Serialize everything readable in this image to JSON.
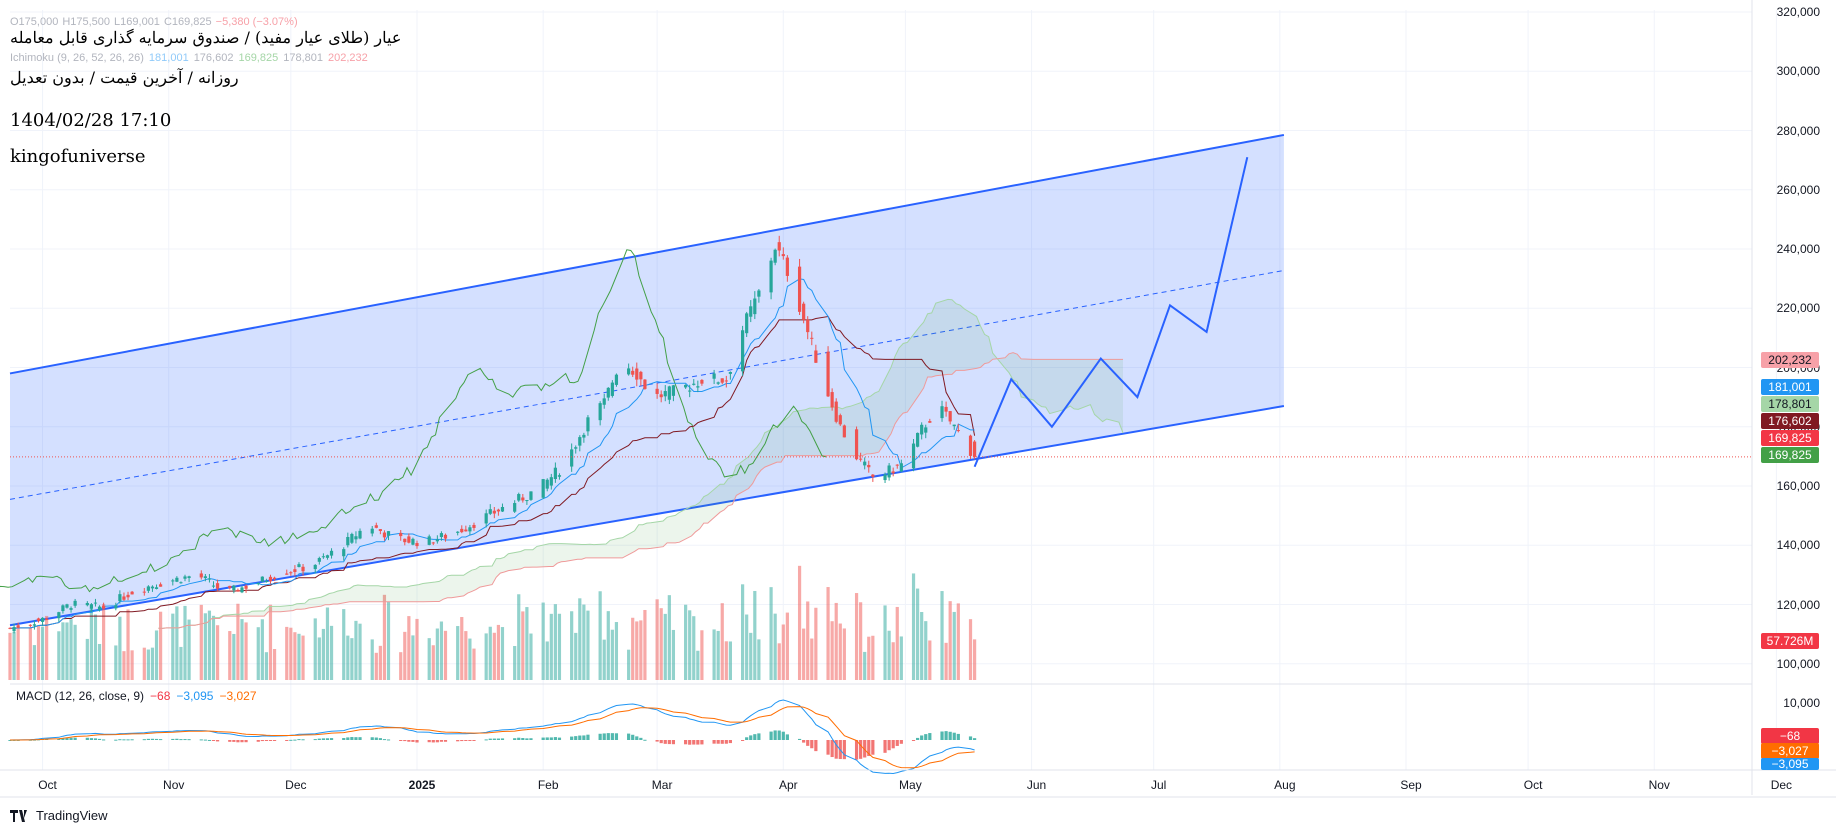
{
  "header": {
    "symbol_line": "عیار (طلای عیار مفید) / صندوق سرمایه گذاری قابل معامله",
    "sub_line": "روزانه / آخرین قیمت / بدون تعدیل",
    "datetime": "1404/02/28 17:10",
    "author": "kingofuniverse",
    "ohlc": {
      "o": "O175,000",
      "h": "H175,500",
      "l": "L169,001",
      "c": "C169,825",
      "chg": "−5,380 (−3.07%)"
    },
    "ichimoku": {
      "label": "Ichimoku (9, 26, 52, 26, 26)",
      "v1": "181,001",
      "v2": "176,602",
      "v3": "169,825",
      "v4": "178,801",
      "v5": "202,232"
    }
  },
  "price_axis": [
    "320,000",
    "300,000",
    "280,000",
    "260,000",
    "240,000",
    "220,000",
    "200,000",
    "180,000",
    "160,000",
    "140,000",
    "120,000",
    "100,000"
  ],
  "macd_axis": [
    "10,000"
  ],
  "time_axis": [
    "Oct",
    "Nov",
    "Dec",
    "2025",
    "Feb",
    "Mar",
    "Apr",
    "May",
    "Jun",
    "Jul",
    "Aug",
    "Sep",
    "Oct",
    "Nov",
    "Dec"
  ],
  "badges": {
    "senkou_b": "202,232",
    "tenkan": "181,001",
    "senkou_a": "178,801",
    "kijun": "176,602",
    "last_red": "169,825",
    "last_green": "169,825",
    "volume": "57.726M",
    "macd_hist": "−68",
    "macd_signal": "−3,027",
    "macd_line": "−3,095"
  },
  "macd_legend": {
    "label": "MACD (12, 26, close, 9)",
    "hist": "−68",
    "macd": "−3,095",
    "signal": "−3,027"
  },
  "footer": {
    "brand": "TradingView"
  },
  "colors": {
    "up": "#26a69a",
    "down": "#ef5350",
    "channel": "#2962ff",
    "tenkan": "#2196f3",
    "kijun": "#801922",
    "chikou": "#43a047",
    "macd": "#2196f3",
    "signal": "#ff6d00",
    "badge_blue": "#2196f3",
    "badge_green": "#43a047",
    "badge_red": "#f23645",
    "badge_maroon": "#801922",
    "badge_pink": "#f7a1a8",
    "badge_lightgreen": "#a5d6a7"
  },
  "chart_data": {
    "type": "candlestick",
    "symbol": "عیار (طلای عیار مفید) / صندوق سرمایه گذاری قابل معامله",
    "timeframe": "روزانه",
    "last": {
      "open": 175000,
      "high": 175500,
      "low": 169001,
      "close": 169825,
      "change": -5380,
      "change_pct": -3.07,
      "volume": "57.726M"
    },
    "ylim": [
      95000,
      322000
    ],
    "indicators": {
      "ichimoku": {
        "tenkan": 181001,
        "kijun": 176602,
        "senkou_a": 178801,
        "senkou_b": 202232,
        "chikou": 169825
      },
      "macd": {
        "params": "12, 26, close, 9",
        "histogram": -68,
        "macd": -3095,
        "signal": -3027
      }
    },
    "channel": {
      "upper_start": {
        "date": "2024-09-23",
        "price": 198000
      },
      "upper_end": {
        "date": "2025-08-02",
        "price": 278500
      },
      "lower_start": {
        "date": "2024-09-23",
        "price": 113000
      },
      "lower_end": {
        "date": "2025-08-02",
        "price": 187000
      }
    },
    "projection": [
      {
        "date": "2025-05-18",
        "price": 166500
      },
      {
        "date": "2025-05-27",
        "price": 196000
      },
      {
        "date": "2025-06-06",
        "price": 180000
      },
      {
        "date": "2025-06-18",
        "price": 203000
      },
      {
        "date": "2025-06-27",
        "price": 190000
      },
      {
        "date": "2025-07-05",
        "price": 221000
      },
      {
        "date": "2025-07-14",
        "price": 212000
      },
      {
        "date": "2025-07-24",
        "price": 271000
      }
    ],
    "price_path": [
      [
        "2024-09-23",
        112000
      ],
      [
        "2024-10-01",
        115000
      ],
      [
        "2024-10-08",
        120000
      ],
      [
        "2024-10-16",
        119000
      ],
      [
        "2024-10-24",
        125000
      ],
      [
        "2024-11-01",
        128000
      ],
      [
        "2024-11-08",
        130000
      ],
      [
        "2024-11-15",
        124000
      ],
      [
        "2024-11-22",
        127000
      ],
      [
        "2024-11-29",
        131000
      ],
      [
        "2024-12-06",
        133000
      ],
      [
        "2024-12-13",
        139000
      ],
      [
        "2024-12-20",
        147000
      ],
      [
        "2024-12-27",
        142000
      ],
      [
        "2025-01-03",
        141000
      ],
      [
        "2025-01-10",
        144000
      ],
      [
        "2025-01-17",
        149000
      ],
      [
        "2025-01-24",
        154000
      ],
      [
        "2025-01-31",
        159000
      ],
      [
        "2025-02-06",
        167000
      ],
      [
        "2025-02-12",
        182000
      ],
      [
        "2025-02-16",
        188000
      ],
      [
        "2025-02-20",
        203000
      ],
      [
        "2025-02-24",
        198000
      ],
      [
        "2025-02-28",
        190000
      ],
      [
        "2025-03-06",
        192000
      ],
      [
        "2025-03-12",
        196000
      ],
      [
        "2025-03-18",
        196000
      ],
      [
        "2025-03-22",
        213000
      ],
      [
        "2025-03-26",
        225000
      ],
      [
        "2025-03-30",
        241000
      ],
      [
        "2025-04-03",
        230000
      ],
      [
        "2025-04-07",
        212000
      ],
      [
        "2025-04-11",
        195000
      ],
      [
        "2025-04-15",
        180000
      ],
      [
        "2025-04-19",
        170000
      ],
      [
        "2025-04-23",
        163000
      ],
      [
        "2025-04-27",
        165000
      ],
      [
        "2025-05-01",
        168000
      ],
      [
        "2025-05-05",
        179000
      ],
      [
        "2025-05-09",
        187000
      ],
      [
        "2025-05-13",
        180000
      ],
      [
        "2025-05-17",
        172000
      ],
      [
        "2025-05-18",
        169825
      ]
    ]
  }
}
